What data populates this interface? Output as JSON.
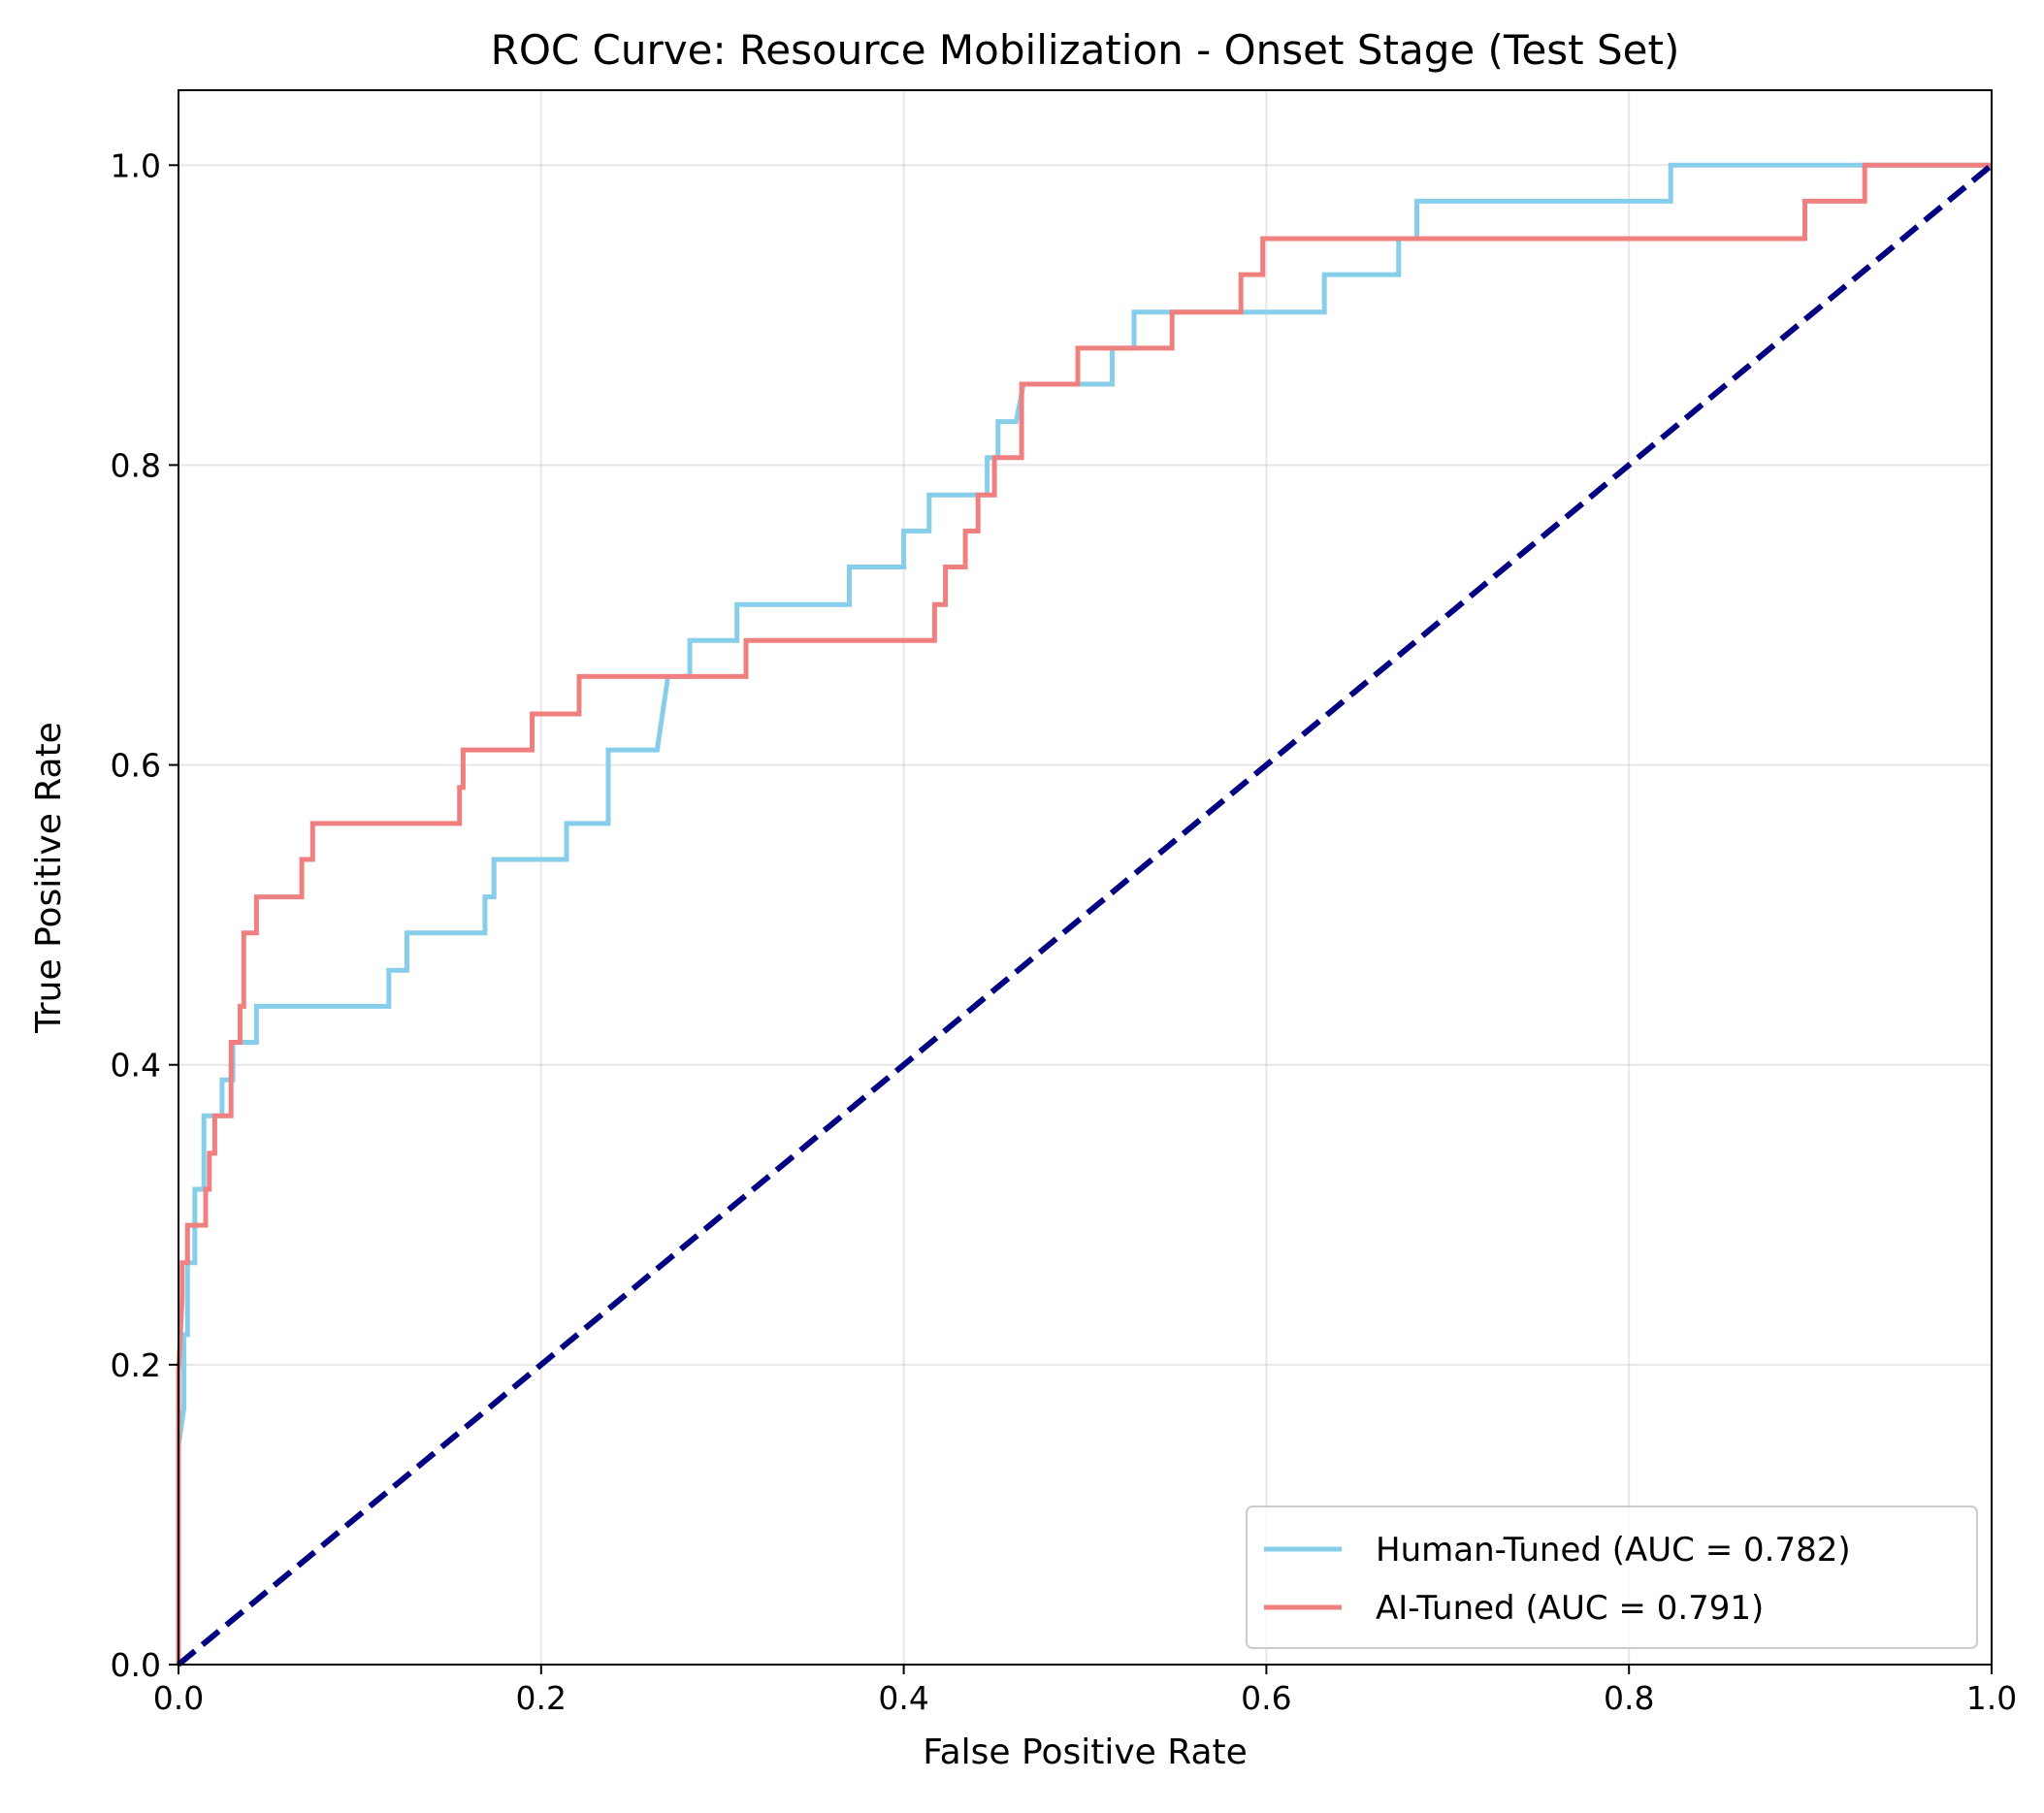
{
  "chart_data": {
    "type": "line",
    "title": "ROC Curve: Resource Mobilization - Onset Stage (Test Set)",
    "xlabel": "False Positive Rate",
    "ylabel": "True Positive Rate",
    "xlim": [
      0.0,
      1.0
    ],
    "ylim": [
      0.0,
      1.05
    ],
    "x_ticks": [
      "0.0",
      "0.2",
      "0.4",
      "0.6",
      "0.8",
      "1.0"
    ],
    "y_ticks": [
      "0.0",
      "0.2",
      "0.4",
      "0.6",
      "0.8",
      "1.0"
    ],
    "grid": true,
    "legend_position": "lower-right",
    "series": [
      {
        "name": "Human-Tuned (AUC = 0.782)",
        "color": "#87ceeb",
        "points": [
          [
            0.0,
            0.0
          ],
          [
            0.0,
            0.146
          ],
          [
            0.003,
            0.171
          ],
          [
            0.003,
            0.22
          ],
          [
            0.005,
            0.22
          ],
          [
            0.005,
            0.268
          ],
          [
            0.009,
            0.268
          ],
          [
            0.009,
            0.317
          ],
          [
            0.014,
            0.317
          ],
          [
            0.014,
            0.366
          ],
          [
            0.024,
            0.366
          ],
          [
            0.024,
            0.39
          ],
          [
            0.03,
            0.39
          ],
          [
            0.03,
            0.415
          ],
          [
            0.043,
            0.415
          ],
          [
            0.043,
            0.439
          ],
          [
            0.116,
            0.439
          ],
          [
            0.116,
            0.463
          ],
          [
            0.126,
            0.463
          ],
          [
            0.126,
            0.488
          ],
          [
            0.169,
            0.488
          ],
          [
            0.169,
            0.512
          ],
          [
            0.174,
            0.512
          ],
          [
            0.174,
            0.537
          ],
          [
            0.214,
            0.537
          ],
          [
            0.214,
            0.561
          ],
          [
            0.237,
            0.561
          ],
          [
            0.237,
            0.61
          ],
          [
            0.264,
            0.61
          ],
          [
            0.27,
            0.659
          ],
          [
            0.282,
            0.659
          ],
          [
            0.282,
            0.683
          ],
          [
            0.308,
            0.683
          ],
          [
            0.308,
            0.707
          ],
          [
            0.37,
            0.707
          ],
          [
            0.37,
            0.732
          ],
          [
            0.4,
            0.732
          ],
          [
            0.4,
            0.756
          ],
          [
            0.414,
            0.756
          ],
          [
            0.414,
            0.78
          ],
          [
            0.446,
            0.78
          ],
          [
            0.446,
            0.805
          ],
          [
            0.452,
            0.805
          ],
          [
            0.452,
            0.829
          ],
          [
            0.462,
            0.829
          ],
          [
            0.466,
            0.854
          ],
          [
            0.515,
            0.854
          ],
          [
            0.515,
            0.878
          ],
          [
            0.527,
            0.878
          ],
          [
            0.527,
            0.902
          ],
          [
            0.632,
            0.902
          ],
          [
            0.632,
            0.927
          ],
          [
            0.673,
            0.927
          ],
          [
            0.673,
            0.951
          ],
          [
            0.683,
            0.951
          ],
          [
            0.683,
            0.976
          ],
          [
            0.823,
            0.976
          ],
          [
            0.823,
            1.0
          ],
          [
            1.0,
            1.0
          ]
        ]
      },
      {
        "name": "AI-Tuned (AUC = 0.791)",
        "color": "#f08080",
        "points": [
          [
            0.0,
            0.0
          ],
          [
            0.0,
            0.195
          ],
          [
            0.002,
            0.244
          ],
          [
            0.002,
            0.268
          ],
          [
            0.005,
            0.268
          ],
          [
            0.005,
            0.293
          ],
          [
            0.015,
            0.293
          ],
          [
            0.015,
            0.317
          ],
          [
            0.017,
            0.317
          ],
          [
            0.017,
            0.341
          ],
          [
            0.02,
            0.341
          ],
          [
            0.02,
            0.366
          ],
          [
            0.029,
            0.366
          ],
          [
            0.029,
            0.415
          ],
          [
            0.034,
            0.415
          ],
          [
            0.034,
            0.439
          ],
          [
            0.036,
            0.439
          ],
          [
            0.036,
            0.488
          ],
          [
            0.043,
            0.488
          ],
          [
            0.043,
            0.512
          ],
          [
            0.068,
            0.512
          ],
          [
            0.068,
            0.537
          ],
          [
            0.074,
            0.537
          ],
          [
            0.074,
            0.561
          ],
          [
            0.155,
            0.561
          ],
          [
            0.155,
            0.585
          ],
          [
            0.157,
            0.585
          ],
          [
            0.157,
            0.61
          ],
          [
            0.195,
            0.61
          ],
          [
            0.195,
            0.634
          ],
          [
            0.221,
            0.634
          ],
          [
            0.221,
            0.659
          ],
          [
            0.313,
            0.659
          ],
          [
            0.313,
            0.683
          ],
          [
            0.417,
            0.683
          ],
          [
            0.417,
            0.707
          ],
          [
            0.423,
            0.707
          ],
          [
            0.423,
            0.732
          ],
          [
            0.434,
            0.732
          ],
          [
            0.434,
            0.756
          ],
          [
            0.441,
            0.756
          ],
          [
            0.441,
            0.78
          ],
          [
            0.45,
            0.78
          ],
          [
            0.45,
            0.805
          ],
          [
            0.465,
            0.805
          ],
          [
            0.465,
            0.854
          ],
          [
            0.496,
            0.854
          ],
          [
            0.496,
            0.878
          ],
          [
            0.548,
            0.878
          ],
          [
            0.548,
            0.902
          ],
          [
            0.586,
            0.902
          ],
          [
            0.586,
            0.927
          ],
          [
            0.598,
            0.927
          ],
          [
            0.598,
            0.951
          ],
          [
            0.897,
            0.951
          ],
          [
            0.897,
            0.976
          ],
          [
            0.93,
            0.976
          ],
          [
            0.93,
            1.0
          ],
          [
            1.0,
            1.0
          ]
        ]
      },
      {
        "name": "",
        "color": "#000080",
        "dashed": true,
        "points": [
          [
            0.0,
            0.0
          ],
          [
            1.0,
            1.0
          ]
        ]
      }
    ]
  }
}
